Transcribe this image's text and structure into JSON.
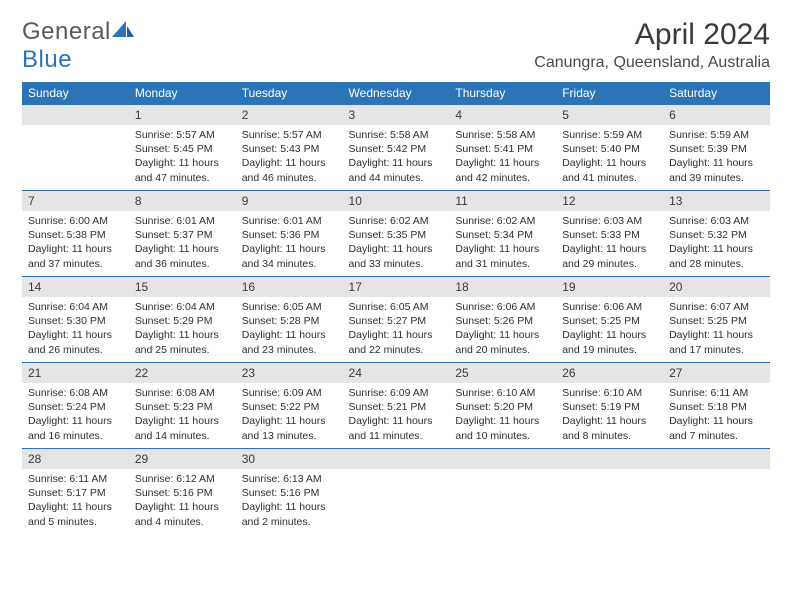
{
  "logo": {
    "text1": "General",
    "text2": "Blue"
  },
  "title": "April 2024",
  "location": "Canungra, Queensland, Australia",
  "colors": {
    "header_bg": "#2b74b8",
    "header_fg": "#ffffff",
    "daynum_bg": "#e5e5e5",
    "border": "#2b74b8"
  },
  "weekdays": [
    "Sunday",
    "Monday",
    "Tuesday",
    "Wednesday",
    "Thursday",
    "Friday",
    "Saturday"
  ],
  "weeks": [
    [
      {
        "blank": true
      },
      {
        "day": "1",
        "sunrise": "Sunrise: 5:57 AM",
        "sunset": "Sunset: 5:45 PM",
        "daylight1": "Daylight: 11 hours",
        "daylight2": "and 47 minutes."
      },
      {
        "day": "2",
        "sunrise": "Sunrise: 5:57 AM",
        "sunset": "Sunset: 5:43 PM",
        "daylight1": "Daylight: 11 hours",
        "daylight2": "and 46 minutes."
      },
      {
        "day": "3",
        "sunrise": "Sunrise: 5:58 AM",
        "sunset": "Sunset: 5:42 PM",
        "daylight1": "Daylight: 11 hours",
        "daylight2": "and 44 minutes."
      },
      {
        "day": "4",
        "sunrise": "Sunrise: 5:58 AM",
        "sunset": "Sunset: 5:41 PM",
        "daylight1": "Daylight: 11 hours",
        "daylight2": "and 42 minutes."
      },
      {
        "day": "5",
        "sunrise": "Sunrise: 5:59 AM",
        "sunset": "Sunset: 5:40 PM",
        "daylight1": "Daylight: 11 hours",
        "daylight2": "and 41 minutes."
      },
      {
        "day": "6",
        "sunrise": "Sunrise: 5:59 AM",
        "sunset": "Sunset: 5:39 PM",
        "daylight1": "Daylight: 11 hours",
        "daylight2": "and 39 minutes."
      }
    ],
    [
      {
        "day": "7",
        "sunrise": "Sunrise: 6:00 AM",
        "sunset": "Sunset: 5:38 PM",
        "daylight1": "Daylight: 11 hours",
        "daylight2": "and 37 minutes."
      },
      {
        "day": "8",
        "sunrise": "Sunrise: 6:01 AM",
        "sunset": "Sunset: 5:37 PM",
        "daylight1": "Daylight: 11 hours",
        "daylight2": "and 36 minutes."
      },
      {
        "day": "9",
        "sunrise": "Sunrise: 6:01 AM",
        "sunset": "Sunset: 5:36 PM",
        "daylight1": "Daylight: 11 hours",
        "daylight2": "and 34 minutes."
      },
      {
        "day": "10",
        "sunrise": "Sunrise: 6:02 AM",
        "sunset": "Sunset: 5:35 PM",
        "daylight1": "Daylight: 11 hours",
        "daylight2": "and 33 minutes."
      },
      {
        "day": "11",
        "sunrise": "Sunrise: 6:02 AM",
        "sunset": "Sunset: 5:34 PM",
        "daylight1": "Daylight: 11 hours",
        "daylight2": "and 31 minutes."
      },
      {
        "day": "12",
        "sunrise": "Sunrise: 6:03 AM",
        "sunset": "Sunset: 5:33 PM",
        "daylight1": "Daylight: 11 hours",
        "daylight2": "and 29 minutes."
      },
      {
        "day": "13",
        "sunrise": "Sunrise: 6:03 AM",
        "sunset": "Sunset: 5:32 PM",
        "daylight1": "Daylight: 11 hours",
        "daylight2": "and 28 minutes."
      }
    ],
    [
      {
        "day": "14",
        "sunrise": "Sunrise: 6:04 AM",
        "sunset": "Sunset: 5:30 PM",
        "daylight1": "Daylight: 11 hours",
        "daylight2": "and 26 minutes."
      },
      {
        "day": "15",
        "sunrise": "Sunrise: 6:04 AM",
        "sunset": "Sunset: 5:29 PM",
        "daylight1": "Daylight: 11 hours",
        "daylight2": "and 25 minutes."
      },
      {
        "day": "16",
        "sunrise": "Sunrise: 6:05 AM",
        "sunset": "Sunset: 5:28 PM",
        "daylight1": "Daylight: 11 hours",
        "daylight2": "and 23 minutes."
      },
      {
        "day": "17",
        "sunrise": "Sunrise: 6:05 AM",
        "sunset": "Sunset: 5:27 PM",
        "daylight1": "Daylight: 11 hours",
        "daylight2": "and 22 minutes."
      },
      {
        "day": "18",
        "sunrise": "Sunrise: 6:06 AM",
        "sunset": "Sunset: 5:26 PM",
        "daylight1": "Daylight: 11 hours",
        "daylight2": "and 20 minutes."
      },
      {
        "day": "19",
        "sunrise": "Sunrise: 6:06 AM",
        "sunset": "Sunset: 5:25 PM",
        "daylight1": "Daylight: 11 hours",
        "daylight2": "and 19 minutes."
      },
      {
        "day": "20",
        "sunrise": "Sunrise: 6:07 AM",
        "sunset": "Sunset: 5:25 PM",
        "daylight1": "Daylight: 11 hours",
        "daylight2": "and 17 minutes."
      }
    ],
    [
      {
        "day": "21",
        "sunrise": "Sunrise: 6:08 AM",
        "sunset": "Sunset: 5:24 PM",
        "daylight1": "Daylight: 11 hours",
        "daylight2": "and 16 minutes."
      },
      {
        "day": "22",
        "sunrise": "Sunrise: 6:08 AM",
        "sunset": "Sunset: 5:23 PM",
        "daylight1": "Daylight: 11 hours",
        "daylight2": "and 14 minutes."
      },
      {
        "day": "23",
        "sunrise": "Sunrise: 6:09 AM",
        "sunset": "Sunset: 5:22 PM",
        "daylight1": "Daylight: 11 hours",
        "daylight2": "and 13 minutes."
      },
      {
        "day": "24",
        "sunrise": "Sunrise: 6:09 AM",
        "sunset": "Sunset: 5:21 PM",
        "daylight1": "Daylight: 11 hours",
        "daylight2": "and 11 minutes."
      },
      {
        "day": "25",
        "sunrise": "Sunrise: 6:10 AM",
        "sunset": "Sunset: 5:20 PM",
        "daylight1": "Daylight: 11 hours",
        "daylight2": "and 10 minutes."
      },
      {
        "day": "26",
        "sunrise": "Sunrise: 6:10 AM",
        "sunset": "Sunset: 5:19 PM",
        "daylight1": "Daylight: 11 hours",
        "daylight2": "and 8 minutes."
      },
      {
        "day": "27",
        "sunrise": "Sunrise: 6:11 AM",
        "sunset": "Sunset: 5:18 PM",
        "daylight1": "Daylight: 11 hours",
        "daylight2": "and 7 minutes."
      }
    ],
    [
      {
        "day": "28",
        "sunrise": "Sunrise: 6:11 AM",
        "sunset": "Sunset: 5:17 PM",
        "daylight1": "Daylight: 11 hours",
        "daylight2": "and 5 minutes."
      },
      {
        "day": "29",
        "sunrise": "Sunrise: 6:12 AM",
        "sunset": "Sunset: 5:16 PM",
        "daylight1": "Daylight: 11 hours",
        "daylight2": "and 4 minutes."
      },
      {
        "day": "30",
        "sunrise": "Sunrise: 6:13 AM",
        "sunset": "Sunset: 5:16 PM",
        "daylight1": "Daylight: 11 hours",
        "daylight2": "and 2 minutes."
      },
      {
        "blank": true
      },
      {
        "blank": true
      },
      {
        "blank": true
      },
      {
        "blank": true
      }
    ]
  ]
}
